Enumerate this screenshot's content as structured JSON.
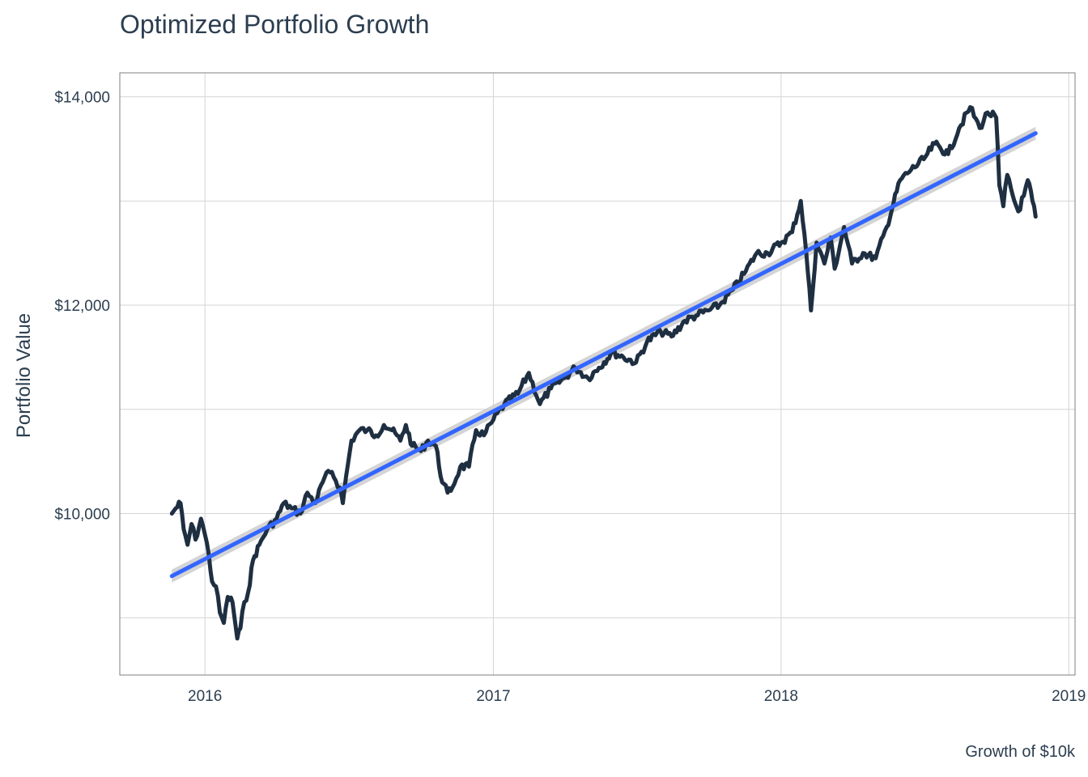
{
  "chart_data": {
    "type": "line",
    "title": "Optimized Portfolio Growth",
    "ylabel": "Portfolio Value",
    "caption": "Growth of $10k",
    "xlim": [
      "2015-09-15",
      "2019-01-09"
    ],
    "ylim": [
      8450,
      14230
    ],
    "x_ticks": [
      "2016",
      "2017",
      "2018",
      "2019"
    ],
    "y_ticks": [
      "$10,000",
      "$12,000",
      "$14,000"
    ],
    "y_tick_values": [
      10000,
      12000,
      14000
    ],
    "grid": true,
    "colors": {
      "line": "#1f2f42",
      "trend": "#3366ff",
      "band": "#cccccc",
      "grid": "#d4d4d4",
      "border": "#7f7f7f"
    },
    "series": [
      {
        "x": [
          "2015-11-20",
          "2015-11-25",
          "2015-12-01",
          "2015-12-05",
          "2015-12-10",
          "2015-12-15",
          "2015-12-20",
          "2015-12-27",
          "2016-01-01",
          "2016-01-06",
          "2016-01-10",
          "2016-01-15",
          "2016-01-20",
          "2016-01-25",
          "2016-01-30",
          "2016-02-05",
          "2016-02-11",
          "2016-02-15",
          "2016-02-20",
          "2016-02-25",
          "2016-03-02",
          "2016-03-10",
          "2016-03-20",
          "2016-04-01",
          "2016-04-10",
          "2016-04-20",
          "2016-05-01",
          "2016-05-10",
          "2016-05-20",
          "2016-06-01",
          "2016-06-10",
          "2016-06-20",
          "2016-06-24",
          "2016-06-28",
          "2016-07-05",
          "2016-07-15",
          "2016-07-25",
          "2016-08-05",
          "2016-08-15",
          "2016-08-25",
          "2016-09-05",
          "2016-09-12",
          "2016-09-20",
          "2016-10-01",
          "2016-10-10",
          "2016-10-20",
          "2016-10-28",
          "2016-11-04",
          "2016-11-10",
          "2016-11-20",
          "2016-12-01",
          "2016-12-10",
          "2016-12-20",
          "2017-01-01",
          "2017-01-15",
          "2017-02-01",
          "2017-02-15",
          "2017-03-01",
          "2017-03-15",
          "2017-04-01",
          "2017-04-15",
          "2017-05-01",
          "2017-05-15",
          "2017-06-01",
          "2017-06-15",
          "2017-07-01",
          "2017-07-15",
          "2017-08-01",
          "2017-08-15",
          "2017-09-01",
          "2017-09-15",
          "2017-10-01",
          "2017-10-15",
          "2017-11-01",
          "2017-11-15",
          "2017-12-01",
          "2017-12-15",
          "2018-01-01",
          "2018-01-15",
          "2018-01-26",
          "2018-02-02",
          "2018-02-08",
          "2018-02-15",
          "2018-02-25",
          "2018-03-05",
          "2018-03-10",
          "2018-03-22",
          "2018-04-01",
          "2018-04-15",
          "2018-05-01",
          "2018-05-15",
          "2018-06-01",
          "2018-06-15",
          "2018-07-01",
          "2018-07-15",
          "2018-08-01",
          "2018-08-15",
          "2018-08-29",
          "2018-09-10",
          "2018-09-20",
          "2018-10-01",
          "2018-10-05",
          "2018-10-10",
          "2018-10-15",
          "2018-10-24",
          "2018-10-29",
          "2018-11-05",
          "2018-11-10",
          "2018-11-16",
          "2018-11-20"
        ],
        "values": [
          10000,
          10050,
          10100,
          9850,
          9700,
          9900,
          9750,
          9950,
          9800,
          9600,
          9350,
          9300,
          9050,
          8950,
          9200,
          9150,
          8800,
          8900,
          9150,
          9250,
          9550,
          9700,
          9850,
          9950,
          10100,
          10050,
          10000,
          10200,
          10100,
          10350,
          10400,
          10250,
          10100,
          10350,
          10700,
          10800,
          10800,
          10750,
          10850,
          10800,
          10700,
          10850,
          10650,
          10600,
          10700,
          10650,
          10300,
          10200,
          10250,
          10450,
          10450,
          10800,
          10750,
          10900,
          11050,
          11150,
          11350,
          11050,
          11200,
          11300,
          11400,
          11300,
          11400,
          11550,
          11500,
          11450,
          11650,
          11750,
          11700,
          11850,
          11900,
          11950,
          12000,
          12150,
          12300,
          12500,
          12500,
          12600,
          12700,
          13000,
          12500,
          11950,
          12600,
          12400,
          12650,
          12350,
          12750,
          12400,
          12500,
          12450,
          12750,
          13200,
          13300,
          13400,
          13550,
          13450,
          13700,
          13900,
          13700,
          13850,
          13800,
          13150,
          12950,
          13250,
          13000,
          12900,
          13050,
          13200,
          13000,
          12850
        ],
        "trend": [
          9400,
          13650
        ]
      }
    ]
  }
}
